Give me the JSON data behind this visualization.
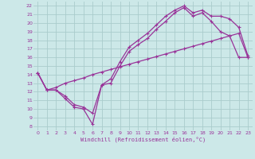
{
  "bg_color": "#cce8e8",
  "grid_color": "#aacccc",
  "line_color": "#993399",
  "xlabel": "Windchill (Refroidissement éolien,°C)",
  "xlabel_color": "#993399",
  "xlim": [
    -0.5,
    23.5
  ],
  "ylim": [
    7.5,
    22.5
  ],
  "xticks": [
    0,
    1,
    2,
    3,
    4,
    5,
    6,
    7,
    8,
    9,
    10,
    11,
    12,
    13,
    14,
    15,
    16,
    17,
    18,
    19,
    20,
    21,
    22,
    23
  ],
  "yticks": [
    8,
    9,
    10,
    11,
    12,
    13,
    14,
    15,
    16,
    17,
    18,
    19,
    20,
    21,
    22
  ],
  "curve1_x": [
    0,
    1,
    2,
    3,
    4,
    5,
    6,
    7,
    8,
    9,
    10,
    11,
    12,
    13,
    14,
    15,
    16,
    17,
    18,
    19,
    20,
    21,
    22,
    23
  ],
  "curve1_y": [
    14.2,
    12.2,
    12.2,
    11.2,
    10.2,
    10.0,
    8.2,
    12.8,
    13.0,
    15.0,
    16.7,
    17.5,
    18.2,
    19.3,
    20.2,
    21.2,
    21.8,
    20.8,
    21.2,
    20.2,
    19.0,
    18.5,
    16.0,
    16.0
  ],
  "curve2_x": [
    0,
    1,
    2,
    3,
    4,
    5,
    6,
    7,
    8,
    9,
    10,
    11,
    12,
    13,
    14,
    15,
    16,
    17,
    18,
    19,
    20,
    21,
    22,
    23
  ],
  "curve2_y": [
    14.2,
    12.2,
    12.2,
    11.5,
    10.5,
    10.2,
    9.5,
    12.8,
    13.5,
    15.5,
    17.2,
    18.0,
    18.8,
    19.8,
    20.8,
    21.5,
    22.0,
    21.2,
    21.5,
    20.8,
    20.8,
    20.5,
    19.5,
    16.2
  ],
  "curve3_x": [
    0,
    1,
    2,
    3,
    4,
    5,
    6,
    7,
    8,
    9,
    10,
    11,
    12,
    13,
    14,
    15,
    16,
    17,
    18,
    19,
    20,
    21,
    22,
    23
  ],
  "curve3_y": [
    14.2,
    12.2,
    12.5,
    13.0,
    13.3,
    13.6,
    14.0,
    14.3,
    14.6,
    14.9,
    15.2,
    15.5,
    15.8,
    16.1,
    16.4,
    16.7,
    17.0,
    17.3,
    17.6,
    17.9,
    18.2,
    18.5,
    18.8,
    16.0
  ]
}
